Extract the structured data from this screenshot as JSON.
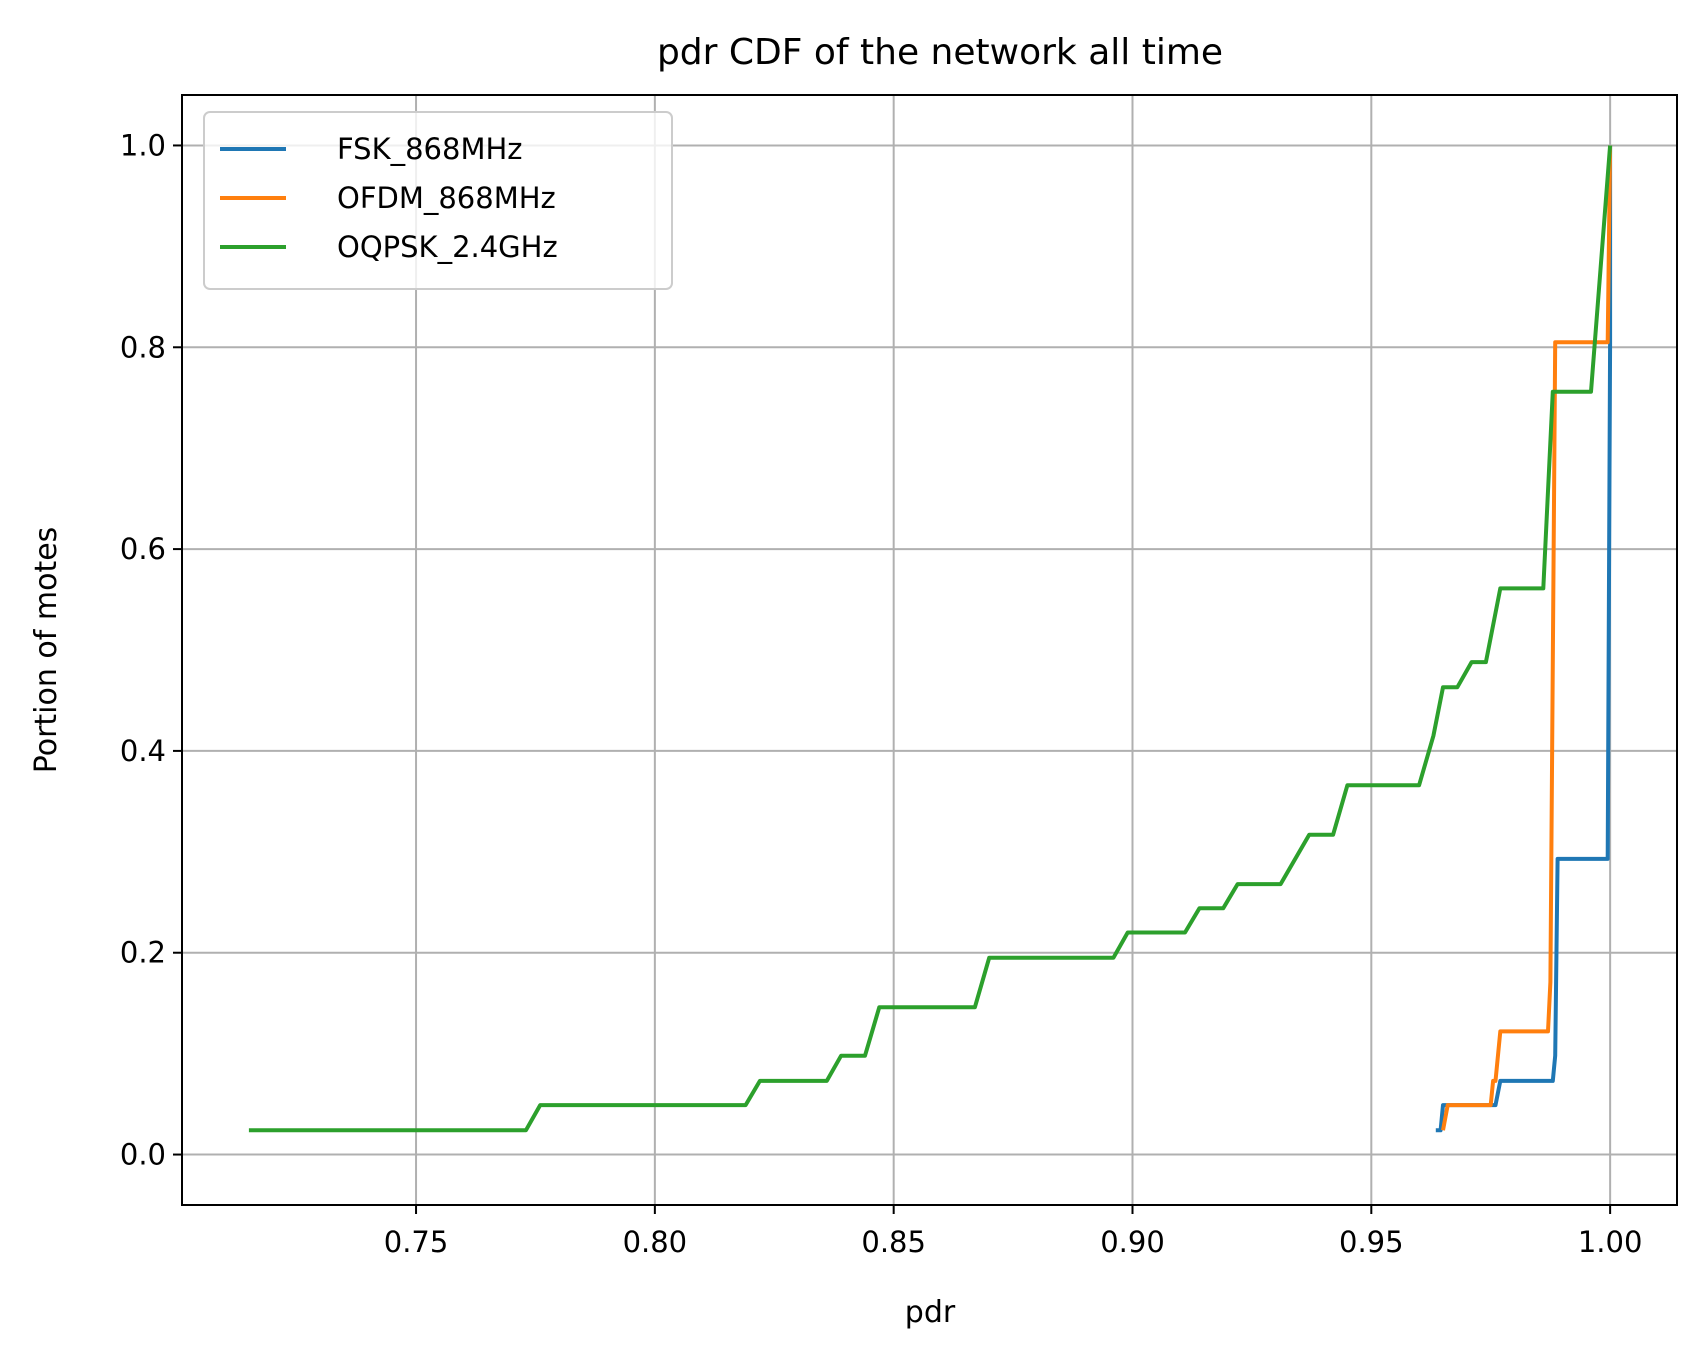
{
  "chart_data": {
    "type": "line",
    "title": "pdr CDF of the network all time",
    "xlabel": "pdr",
    "ylabel": "Portion of motes",
    "xlim": [
      0.701,
      1.014
    ],
    "ylim": [
      -0.05,
      1.05
    ],
    "xticks": [
      0.75,
      0.8,
      0.85,
      0.9,
      0.95,
      1.0
    ],
    "xtick_labels": [
      "0.75",
      "0.80",
      "0.85",
      "0.90",
      "0.95",
      "1.00"
    ],
    "yticks": [
      0.0,
      0.2,
      0.4,
      0.6,
      0.8,
      1.0
    ],
    "ytick_labels": [
      "0.0",
      "0.2",
      "0.4",
      "0.6",
      "0.8",
      "1.0"
    ],
    "grid": true,
    "legend_position": "top-left",
    "series": [
      {
        "name": "FSK_868MHz",
        "color": "#1f77b4",
        "points": [
          [
            0.9635,
            0.024
          ],
          [
            0.9645,
            0.024
          ],
          [
            0.965,
            0.049
          ],
          [
            0.976,
            0.049
          ],
          [
            0.977,
            0.073
          ],
          [
            0.988,
            0.073
          ],
          [
            0.9885,
            0.098
          ],
          [
            0.989,
            0.293
          ],
          [
            0.9995,
            0.293
          ],
          [
            1.0,
            0.805
          ],
          [
            1.0,
            1.0
          ]
        ]
      },
      {
        "name": "OFDM_868MHz",
        "color": "#ff7f0e",
        "points": [
          [
            0.965,
            0.024
          ],
          [
            0.966,
            0.049
          ],
          [
            0.975,
            0.049
          ],
          [
            0.9755,
            0.073
          ],
          [
            0.976,
            0.073
          ],
          [
            0.977,
            0.122
          ],
          [
            0.987,
            0.122
          ],
          [
            0.9875,
            0.171
          ],
          [
            0.9885,
            0.805
          ],
          [
            0.9995,
            0.805
          ],
          [
            1.0,
            1.0
          ]
        ]
      },
      {
        "name": "OQPSK_2.4GHz",
        "color": "#2ca02c",
        "points": [
          [
            0.715,
            0.024
          ],
          [
            0.773,
            0.024
          ],
          [
            0.776,
            0.049
          ],
          [
            0.819,
            0.049
          ],
          [
            0.822,
            0.073
          ],
          [
            0.836,
            0.073
          ],
          [
            0.839,
            0.098
          ],
          [
            0.844,
            0.098
          ],
          [
            0.847,
            0.146
          ],
          [
            0.867,
            0.146
          ],
          [
            0.87,
            0.195
          ],
          [
            0.896,
            0.195
          ],
          [
            0.899,
            0.22
          ],
          [
            0.911,
            0.22
          ],
          [
            0.914,
            0.244
          ],
          [
            0.919,
            0.244
          ],
          [
            0.922,
            0.268
          ],
          [
            0.931,
            0.268
          ],
          [
            0.937,
            0.317
          ],
          [
            0.942,
            0.317
          ],
          [
            0.945,
            0.366
          ],
          [
            0.96,
            0.366
          ],
          [
            0.963,
            0.415
          ],
          [
            0.965,
            0.463
          ],
          [
            0.968,
            0.463
          ],
          [
            0.971,
            0.488
          ],
          [
            0.974,
            0.488
          ],
          [
            0.977,
            0.561
          ],
          [
            0.986,
            0.561
          ],
          [
            0.988,
            0.756
          ],
          [
            0.996,
            0.756
          ],
          [
            1.0,
            1.0
          ]
        ]
      }
    ]
  }
}
